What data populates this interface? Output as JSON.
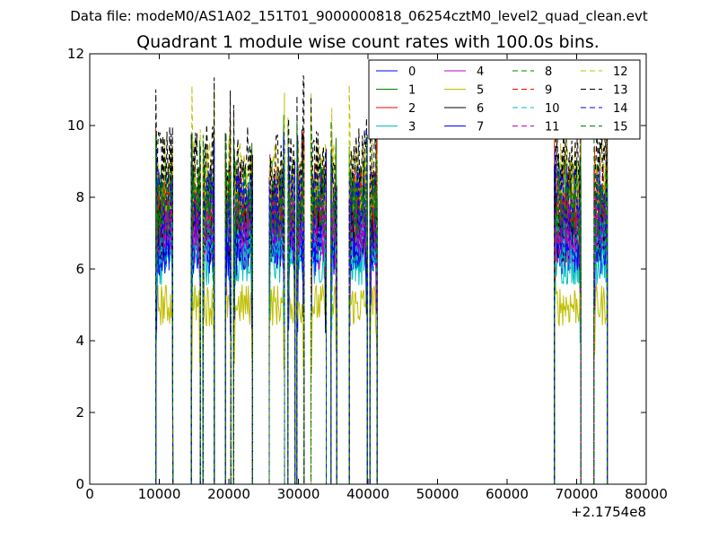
{
  "figure": {
    "suptitle": "Data file: modeM0/AS1A02_151T01_9000000818_06254cztM0_level2_quad_clean.evt",
    "title": "Quadrant 1 module wise count rates with 100.0s bins."
  },
  "chart_data": {
    "type": "line",
    "title": "Quadrant 1 module wise count rates with 100.0s bins.",
    "xlabel": "",
    "ylabel": "",
    "x_offset_label": "+2.1754e8",
    "xlim": [
      0,
      80000
    ],
    "ylim": [
      0,
      12
    ],
    "xticks": [
      0,
      10000,
      20000,
      30000,
      40000,
      50000,
      60000,
      70000,
      80000
    ],
    "yticks": [
      0,
      2,
      4,
      6,
      8,
      10,
      12
    ],
    "grid": false,
    "legend_position": "top-right",
    "bin_seconds": 100,
    "active_intervals": [
      [
        9500,
        11950
      ],
      [
        14600,
        15900
      ],
      [
        16300,
        17900
      ],
      [
        19500,
        20300
      ],
      [
        20700,
        23400
      ],
      [
        25800,
        28000
      ],
      [
        28500,
        29500
      ],
      [
        29800,
        30800
      ],
      [
        31800,
        34000
      ],
      [
        34700,
        35500
      ],
      [
        37300,
        39900
      ],
      [
        40300,
        41300
      ],
      [
        66800,
        70600
      ],
      [
        72500,
        74400
      ]
    ],
    "series": [
      {
        "name": "0",
        "color": "#0000ff",
        "dash": "solid",
        "level": 7.0
      },
      {
        "name": "1",
        "color": "#008000",
        "dash": "solid",
        "level": 8.1
      },
      {
        "name": "2",
        "color": "#ff0000",
        "dash": "solid",
        "level": 7.5
      },
      {
        "name": "3",
        "color": "#00bfbf",
        "dash": "solid",
        "level": 6.3
      },
      {
        "name": "4",
        "color": "#bf00bf",
        "dash": "solid",
        "level": 6.8
      },
      {
        "name": "5",
        "color": "#bfbf00",
        "dash": "solid",
        "level": 5.0
      },
      {
        "name": "6",
        "color": "#000000",
        "dash": "solid",
        "level": 7.0
      },
      {
        "name": "7",
        "color": "#0000ff",
        "dash": "solid",
        "level": 6.6
      },
      {
        "name": "8",
        "color": "#008000",
        "dash": "dashed",
        "level": 7.6
      },
      {
        "name": "9",
        "color": "#ff0000",
        "dash": "dashed",
        "level": 8.0
      },
      {
        "name": "10",
        "color": "#00bfbf",
        "dash": "dashed",
        "level": 6.7
      },
      {
        "name": "11",
        "color": "#bf00bf",
        "dash": "dashed",
        "level": 7.2
      },
      {
        "name": "12",
        "color": "#bfbf00",
        "dash": "dashed",
        "level": 8.6
      },
      {
        "name": "13",
        "color": "#000000",
        "dash": "dashed",
        "level": 9.0
      },
      {
        "name": "14",
        "color": "#0000ff",
        "dash": "dashed",
        "level": 7.9
      },
      {
        "name": "15",
        "color": "#008000",
        "dash": "dashed",
        "level": 7.8
      }
    ]
  }
}
